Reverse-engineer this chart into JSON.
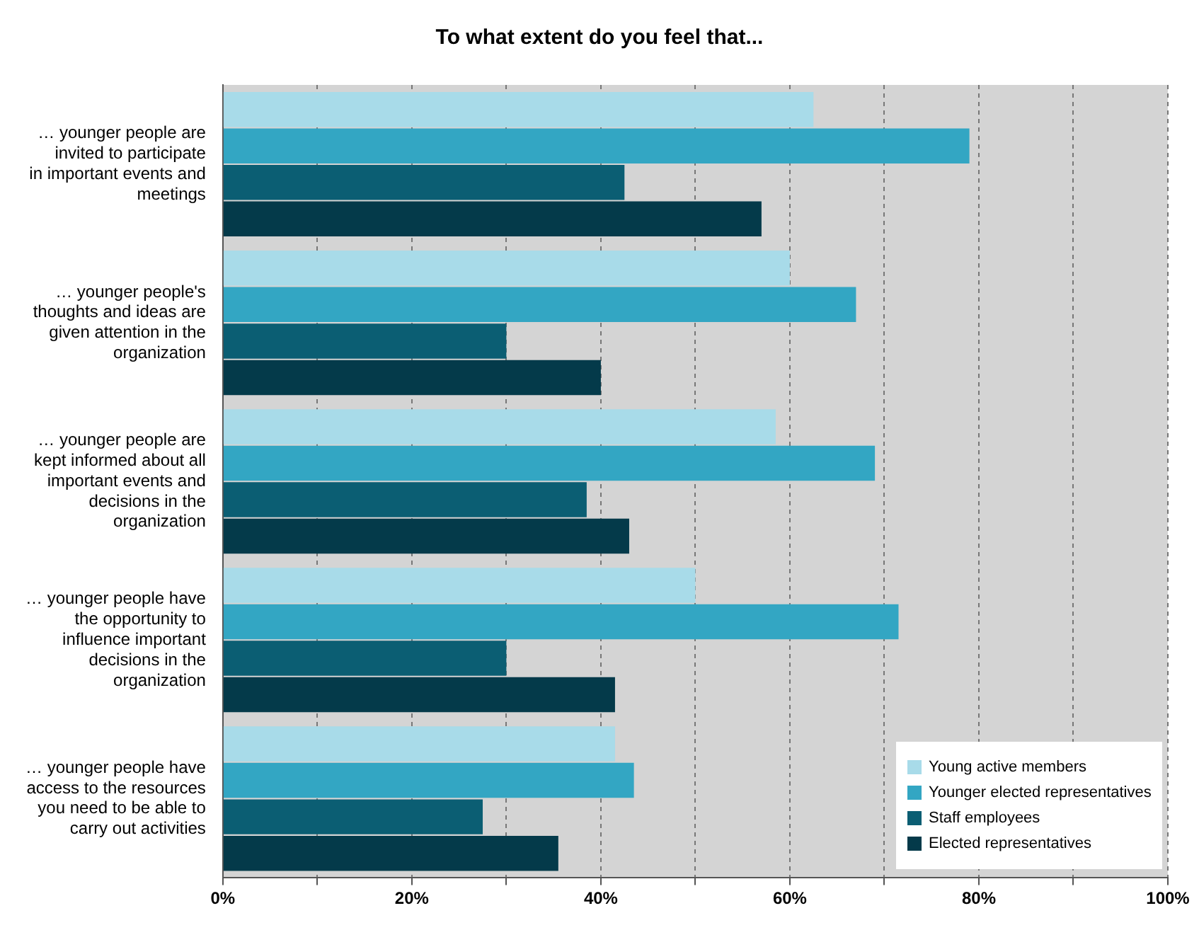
{
  "chart_data": {
    "type": "bar",
    "orientation": "horizontal",
    "title": "To what extent do you feel that...",
    "categories": [
      "… younger people are invited to participate in important events and meetings",
      "… younger people's thoughts and ideas are given attention in the organization",
      "… younger people are kept informed about all important events and decisions in the organization",
      "… younger people have the opportunity to influence important decisions in the organization",
      "… younger people have access to the resources you need to be able to carry out activities"
    ],
    "series": [
      {
        "name": "Young active members",
        "color": "#a8dbe9",
        "values": [
          62.5,
          60,
          58.5,
          50,
          41.5
        ]
      },
      {
        "name": "Younger elected representatives",
        "color": "#33a6c3",
        "values": [
          79,
          67,
          69,
          71.5,
          43.5
        ]
      },
      {
        "name": "Staff employees",
        "color": "#0b5e73",
        "values": [
          42.5,
          30,
          38.5,
          30,
          27.5
        ]
      },
      {
        "name": "Elected representatives",
        "color": "#043a4a",
        "values": [
          57,
          40,
          43,
          41.5,
          35.5
        ]
      }
    ],
    "xlim": [
      0,
      100
    ],
    "xticks": [
      {
        "value": 0,
        "label": "0%"
      },
      {
        "value": 10,
        "label": null
      },
      {
        "value": 20,
        "label": "20%"
      },
      {
        "value": 30,
        "label": null
      },
      {
        "value": 40,
        "label": "40%"
      },
      {
        "value": 50,
        "label": null
      },
      {
        "value": 60,
        "label": "60%"
      },
      {
        "value": 70,
        "label": null
      },
      {
        "value": 80,
        "label": "80%"
      },
      {
        "value": 90,
        "label": null
      },
      {
        "value": 100,
        "label": "100%"
      }
    ],
    "grid": "x",
    "legend": "bottom right"
  }
}
